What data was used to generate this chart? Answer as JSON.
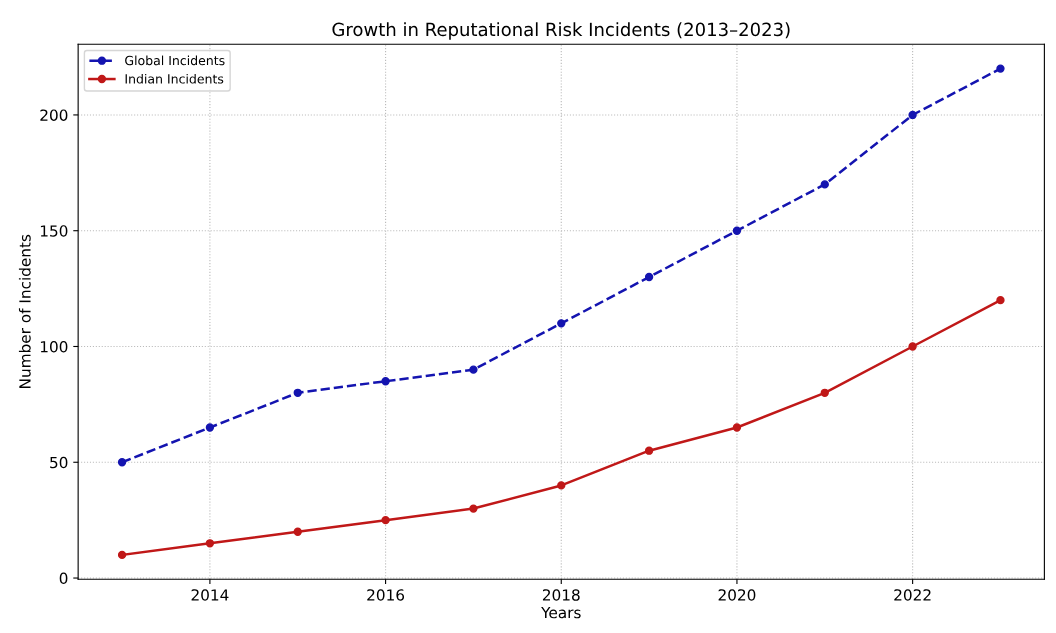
{
  "chart_data": {
    "type": "line",
    "title": "Growth in Reputational Risk Incidents (2013–2023)",
    "xlabel": "Years",
    "ylabel": "Number of Incidents",
    "x": [
      2013,
      2014,
      2015,
      2016,
      2017,
      2018,
      2019,
      2020,
      2021,
      2022,
      2023
    ],
    "series": [
      {
        "name": "Global Incidents",
        "color": "#1414b0",
        "line_style": "dashed",
        "values": [
          50,
          65,
          80,
          85,
          90,
          110,
          130,
          150,
          170,
          200,
          220
        ]
      },
      {
        "name": "Indian Incidents",
        "color": "#c01818",
        "line_style": "solid",
        "values": [
          10,
          15,
          20,
          25,
          30,
          40,
          55,
          65,
          80,
          100,
          120
        ]
      }
    ],
    "xlim": [
      2012.5,
      2023.5
    ],
    "xticks": [
      2014,
      2016,
      2018,
      2020,
      2022
    ],
    "ylim": [
      -0.5,
      230.5
    ],
    "yticks": [
      0,
      50,
      100,
      150,
      200
    ],
    "grid": true,
    "legend": "top left",
    "marker": "circle"
  }
}
